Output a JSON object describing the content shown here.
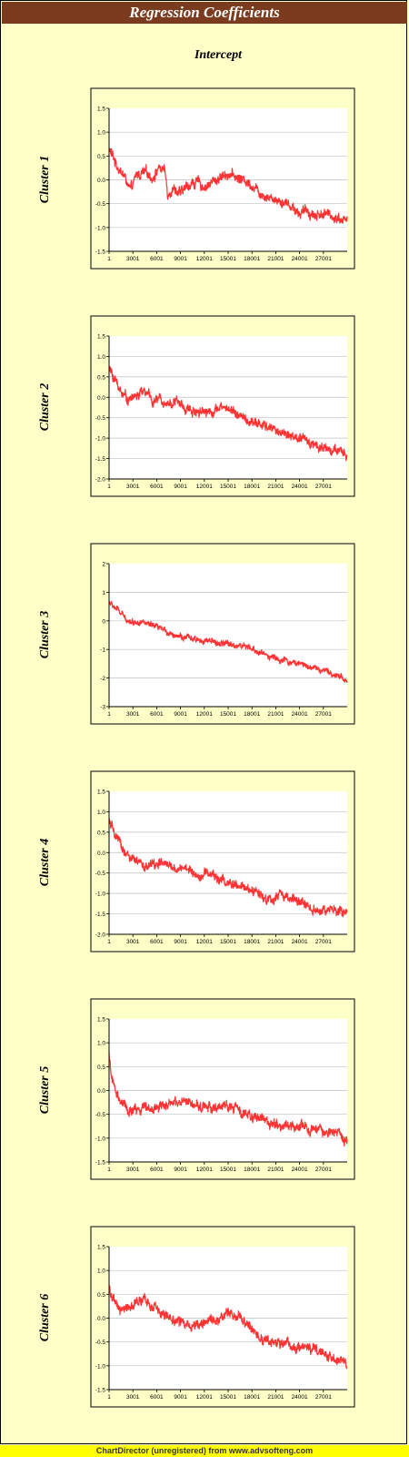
{
  "title": "Regression Coefficients",
  "column_title": "Intercept",
  "footer": "ChartDirector (unregistered) from www.advsofteng.com",
  "colors": {
    "title_bar": "#7b3b1e",
    "background": "#ffffc8",
    "plot_background": "#ffffff",
    "series": "#ff3333",
    "grid": "#c0c0c0",
    "footer_bar": "#ffff00"
  },
  "chart_data": [
    {
      "type": "line",
      "title": "Cluster 1",
      "x_ticks": [
        "1",
        "3001",
        "6001",
        "9001",
        "12001",
        "15001",
        "18001",
        "21001",
        "24001",
        "27001"
      ],
      "xlim": [
        1,
        30000
      ],
      "ylim": [
        -1.5,
        1.5
      ],
      "y_ticks": [
        "1.5",
        "1.0",
        "0.5",
        "0.0",
        "-0.5",
        "-1.0",
        "-1.5"
      ],
      "grid": true,
      "noise": 0.09,
      "series": [
        {
          "points": [
            [
              1,
              0.65
            ],
            [
              1000,
              0.3
            ],
            [
              2000,
              0.05
            ],
            [
              2700,
              -0.25
            ],
            [
              3500,
              0.1
            ],
            [
              4500,
              0.15
            ],
            [
              5500,
              0.05
            ],
            [
              6200,
              0.25
            ],
            [
              7000,
              0.2
            ],
            [
              7400,
              -0.3
            ],
            [
              8000,
              -0.15
            ],
            [
              9000,
              -0.3
            ],
            [
              10000,
              -0.1
            ],
            [
              11000,
              -0.05
            ],
            [
              12000,
              -0.15
            ],
            [
              13000,
              -0.05
            ],
            [
              14000,
              0.05
            ],
            [
              15000,
              0.15
            ],
            [
              16000,
              0.05
            ],
            [
              17000,
              0.0
            ],
            [
              18000,
              -0.1
            ],
            [
              19000,
              -0.25
            ],
            [
              20000,
              -0.35
            ],
            [
              21000,
              -0.4
            ],
            [
              22000,
              -0.45
            ],
            [
              23000,
              -0.55
            ],
            [
              24000,
              -0.7
            ],
            [
              25000,
              -0.65
            ],
            [
              26000,
              -0.75
            ],
            [
              27000,
              -0.7
            ],
            [
              28000,
              -0.75
            ],
            [
              29000,
              -0.8
            ],
            [
              30000,
              -0.85
            ]
          ]
        }
      ]
    },
    {
      "type": "line",
      "title": "Cluster 2",
      "x_ticks": [
        "1",
        "3001",
        "6001",
        "9001",
        "12001",
        "15001",
        "18001",
        "21001",
        "24001",
        "27001"
      ],
      "xlim": [
        1,
        30000
      ],
      "ylim": [
        -2.0,
        1.5
      ],
      "y_ticks": [
        "1.5",
        "1.0",
        "0.5",
        "0.0",
        "-0.5",
        "-1.0",
        "-1.5",
        "-2.0"
      ],
      "grid": true,
      "noise": 0.1,
      "series": [
        {
          "points": [
            [
              1,
              0.7
            ],
            [
              700,
              0.45
            ],
            [
              1500,
              0.15
            ],
            [
              2500,
              -0.05
            ],
            [
              3500,
              0.05
            ],
            [
              4500,
              0.15
            ],
            [
              5500,
              -0.1
            ],
            [
              6500,
              -0.05
            ],
            [
              7500,
              -0.15
            ],
            [
              8500,
              -0.1
            ],
            [
              9500,
              -0.25
            ],
            [
              10500,
              -0.35
            ],
            [
              11500,
              -0.3
            ],
            [
              12500,
              -0.35
            ],
            [
              13500,
              -0.3
            ],
            [
              14500,
              -0.25
            ],
            [
              15500,
              -0.3
            ],
            [
              16500,
              -0.45
            ],
            [
              17500,
              -0.6
            ],
            [
              18500,
              -0.65
            ],
            [
              19500,
              -0.7
            ],
            [
              20500,
              -0.75
            ],
            [
              21500,
              -0.85
            ],
            [
              22500,
              -0.9
            ],
            [
              23500,
              -1.0
            ],
            [
              24500,
              -1.05
            ],
            [
              25500,
              -1.1
            ],
            [
              26500,
              -1.2
            ],
            [
              27500,
              -1.25
            ],
            [
              28500,
              -1.3
            ],
            [
              29500,
              -1.4
            ],
            [
              30000,
              -1.45
            ]
          ]
        }
      ]
    },
    {
      "type": "line",
      "title": "Cluster 3",
      "x_ticks": [
        "1",
        "3001",
        "6001",
        "9001",
        "12001",
        "15001",
        "18001",
        "21001",
        "24001",
        "27001"
      ],
      "xlim": [
        1,
        30000
      ],
      "ylim": [
        -3,
        2
      ],
      "y_ticks": [
        "2",
        "1",
        "0",
        "-1",
        "-2",
        "-3"
      ],
      "grid": true,
      "noise": 0.09,
      "series": [
        {
          "points": [
            [
              1,
              0.65
            ],
            [
              1000,
              0.4
            ],
            [
              2000,
              0.1
            ],
            [
              3000,
              -0.05
            ],
            [
              4000,
              0.0
            ],
            [
              5000,
              -0.15
            ],
            [
              6000,
              -0.25
            ],
            [
              7000,
              -0.35
            ],
            [
              8000,
              -0.45
            ],
            [
              9000,
              -0.55
            ],
            [
              10000,
              -0.6
            ],
            [
              11000,
              -0.7
            ],
            [
              12000,
              -0.65
            ],
            [
              13000,
              -0.75
            ],
            [
              14000,
              -0.8
            ],
            [
              15000,
              -0.8
            ],
            [
              16000,
              -0.85
            ],
            [
              17000,
              -0.9
            ],
            [
              18000,
              -1.0
            ],
            [
              19000,
              -1.1
            ],
            [
              20000,
              -1.2
            ],
            [
              21000,
              -1.3
            ],
            [
              22000,
              -1.4
            ],
            [
              23000,
              -1.45
            ],
            [
              24000,
              -1.5
            ],
            [
              25000,
              -1.55
            ],
            [
              26000,
              -1.65
            ],
            [
              27000,
              -1.75
            ],
            [
              28000,
              -1.85
            ],
            [
              29000,
              -1.9
            ],
            [
              30000,
              -2.1
            ]
          ]
        }
      ]
    },
    {
      "type": "line",
      "title": "Cluster 4",
      "x_ticks": [
        "1",
        "3001",
        "6001",
        "9001",
        "12001",
        "15001",
        "18001",
        "21001",
        "24001",
        "27001"
      ],
      "xlim": [
        1,
        30000
      ],
      "ylim": [
        -2.0,
        1.5
      ],
      "y_ticks": [
        "1.5",
        "1.0",
        "0.5",
        "0.0",
        "-0.5",
        "-1.0",
        "-1.5",
        "-2.0"
      ],
      "grid": true,
      "noise": 0.1,
      "series": [
        {
          "points": [
            [
              1,
              0.75
            ],
            [
              700,
              0.45
            ],
            [
              1500,
              0.15
            ],
            [
              2500,
              -0.1
            ],
            [
              3500,
              -0.25
            ],
            [
              4500,
              -0.35
            ],
            [
              5500,
              -0.3
            ],
            [
              6500,
              -0.25
            ],
            [
              7500,
              -0.35
            ],
            [
              8500,
              -0.4
            ],
            [
              9500,
              -0.35
            ],
            [
              10500,
              -0.5
            ],
            [
              11500,
              -0.55
            ],
            [
              12500,
              -0.5
            ],
            [
              13500,
              -0.6
            ],
            [
              14500,
              -0.7
            ],
            [
              15500,
              -0.8
            ],
            [
              16500,
              -0.85
            ],
            [
              17500,
              -0.9
            ],
            [
              18500,
              -0.95
            ],
            [
              19500,
              -1.05
            ],
            [
              20500,
              -1.2
            ],
            [
              21500,
              -1.05
            ],
            [
              22500,
              -1.1
            ],
            [
              23500,
              -1.2
            ],
            [
              24500,
              -1.25
            ],
            [
              25500,
              -1.35
            ],
            [
              26500,
              -1.4
            ],
            [
              27500,
              -1.45
            ],
            [
              28500,
              -1.4
            ],
            [
              29500,
              -1.5
            ],
            [
              30000,
              -1.45
            ]
          ]
        }
      ]
    },
    {
      "type": "line",
      "title": "Cluster 5",
      "x_ticks": [
        "1",
        "3001",
        "6001",
        "9001",
        "12001",
        "15001",
        "18001",
        "21001",
        "24001",
        "27001"
      ],
      "xlim": [
        1,
        30000
      ],
      "ylim": [
        -1.5,
        1.5
      ],
      "y_ticks": [
        "1.5",
        "1.0",
        "0.5",
        "0.0",
        "-0.5",
        "-1.0",
        "-1.5"
      ],
      "grid": true,
      "noise": 0.09,
      "series": [
        {
          "points": [
            [
              1,
              0.8
            ],
            [
              300,
              0.3
            ],
            [
              800,
              -0.05
            ],
            [
              1500,
              -0.25
            ],
            [
              2500,
              -0.45
            ],
            [
              3500,
              -0.4
            ],
            [
              4500,
              -0.35
            ],
            [
              5500,
              -0.4
            ],
            [
              6500,
              -0.3
            ],
            [
              7500,
              -0.25
            ],
            [
              8500,
              -0.3
            ],
            [
              9500,
              -0.25
            ],
            [
              10500,
              -0.3
            ],
            [
              11500,
              -0.35
            ],
            [
              12500,
              -0.3
            ],
            [
              13500,
              -0.4
            ],
            [
              14500,
              -0.35
            ],
            [
              15500,
              -0.3
            ],
            [
              16500,
              -0.45
            ],
            [
              17500,
              -0.5
            ],
            [
              18500,
              -0.55
            ],
            [
              19500,
              -0.6
            ],
            [
              20500,
              -0.7
            ],
            [
              21500,
              -0.75
            ],
            [
              22500,
              -0.7
            ],
            [
              23500,
              -0.8
            ],
            [
              24500,
              -0.75
            ],
            [
              25500,
              -0.85
            ],
            [
              26500,
              -0.8
            ],
            [
              27500,
              -0.9
            ],
            [
              28500,
              -0.85
            ],
            [
              29500,
              -1.0
            ],
            [
              30000,
              -1.0
            ]
          ]
        }
      ]
    },
    {
      "type": "line",
      "title": "Cluster 6",
      "x_ticks": [
        "1",
        "3001",
        "6001",
        "9001",
        "12001",
        "15001",
        "18001",
        "21001",
        "24001",
        "27001"
      ],
      "xlim": [
        1,
        30000
      ],
      "ylim": [
        -1.5,
        1.5
      ],
      "y_ticks": [
        "1.5",
        "1.0",
        "0.5",
        "0.0",
        "-0.5",
        "-1.0",
        "-1.5"
      ],
      "grid": true,
      "noise": 0.09,
      "series": [
        {
          "points": [
            [
              1,
              0.65
            ],
            [
              700,
              0.3
            ],
            [
              1500,
              0.15
            ],
            [
              2500,
              0.25
            ],
            [
              3500,
              0.3
            ],
            [
              4500,
              0.35
            ],
            [
              5500,
              0.25
            ],
            [
              6500,
              0.1
            ],
            [
              7500,
              0.05
            ],
            [
              8500,
              -0.05
            ],
            [
              9500,
              -0.1
            ],
            [
              10500,
              -0.15
            ],
            [
              11500,
              -0.05
            ],
            [
              12500,
              -0.1
            ],
            [
              13500,
              -0.05
            ],
            [
              14500,
              0.05
            ],
            [
              15500,
              0.1
            ],
            [
              16500,
              0.05
            ],
            [
              17500,
              -0.15
            ],
            [
              18500,
              -0.35
            ],
            [
              19500,
              -0.4
            ],
            [
              20500,
              -0.5
            ],
            [
              21500,
              -0.55
            ],
            [
              22500,
              -0.5
            ],
            [
              23500,
              -0.6
            ],
            [
              24500,
              -0.55
            ],
            [
              25500,
              -0.65
            ],
            [
              26500,
              -0.75
            ],
            [
              27500,
              -0.85
            ],
            [
              28500,
              -0.9
            ],
            [
              29500,
              -0.95
            ],
            [
              30000,
              -0.95
            ]
          ]
        }
      ]
    }
  ]
}
